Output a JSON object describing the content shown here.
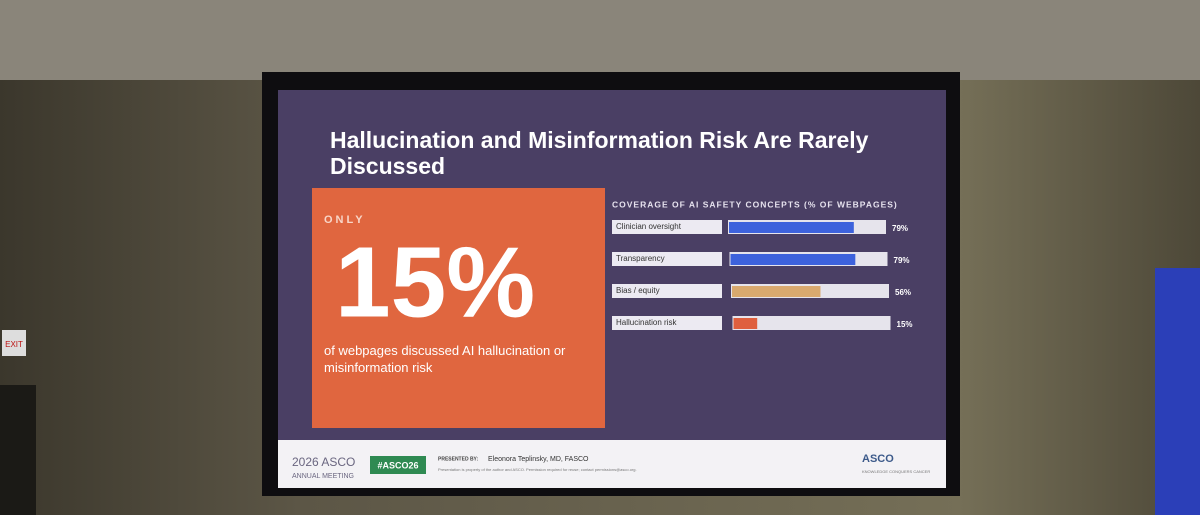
{
  "slide": {
    "title": "Hallucination and Misinformation Risk Are Rarely Discussed",
    "callout": {
      "kicker": "ONLY",
      "big": "15%",
      "text": "of webpages discussed AI hallucination or misinformation risk"
    },
    "footer": {
      "meeting_year": "2026 ASCO",
      "meeting": "ANNUAL MEETING",
      "hashtag": "#ASCO26",
      "presented_by": "PRESENTED BY:",
      "presenter": "Eleonora Teplinsky, MD, FASCO",
      "notice": "Presentation is property of the author and ASCO. Permission required for reuse; contact permissions@asco.org.",
      "logo": "ASCO",
      "logo_sub": "KNOWLEDGE CONQUERS CANCER"
    }
  },
  "room": {
    "exit_sign": "EXIT"
  },
  "chart_data": {
    "type": "bar",
    "orientation": "horizontal",
    "title": "COVERAGE OF AI SAFETY CONCEPTS (% OF WEBPAGES)",
    "categories": [
      "Clinician oversight",
      "Transparency",
      "Bias / equity",
      "Hallucination risk"
    ],
    "values": [
      79,
      79,
      56,
      15
    ],
    "value_labels": [
      "79%",
      "79%",
      "56%",
      "15%"
    ],
    "colors": [
      "#3d62dc",
      "#3d62dc",
      "#d9a96e",
      "#df5f3e"
    ],
    "xlim": [
      0,
      100
    ]
  }
}
